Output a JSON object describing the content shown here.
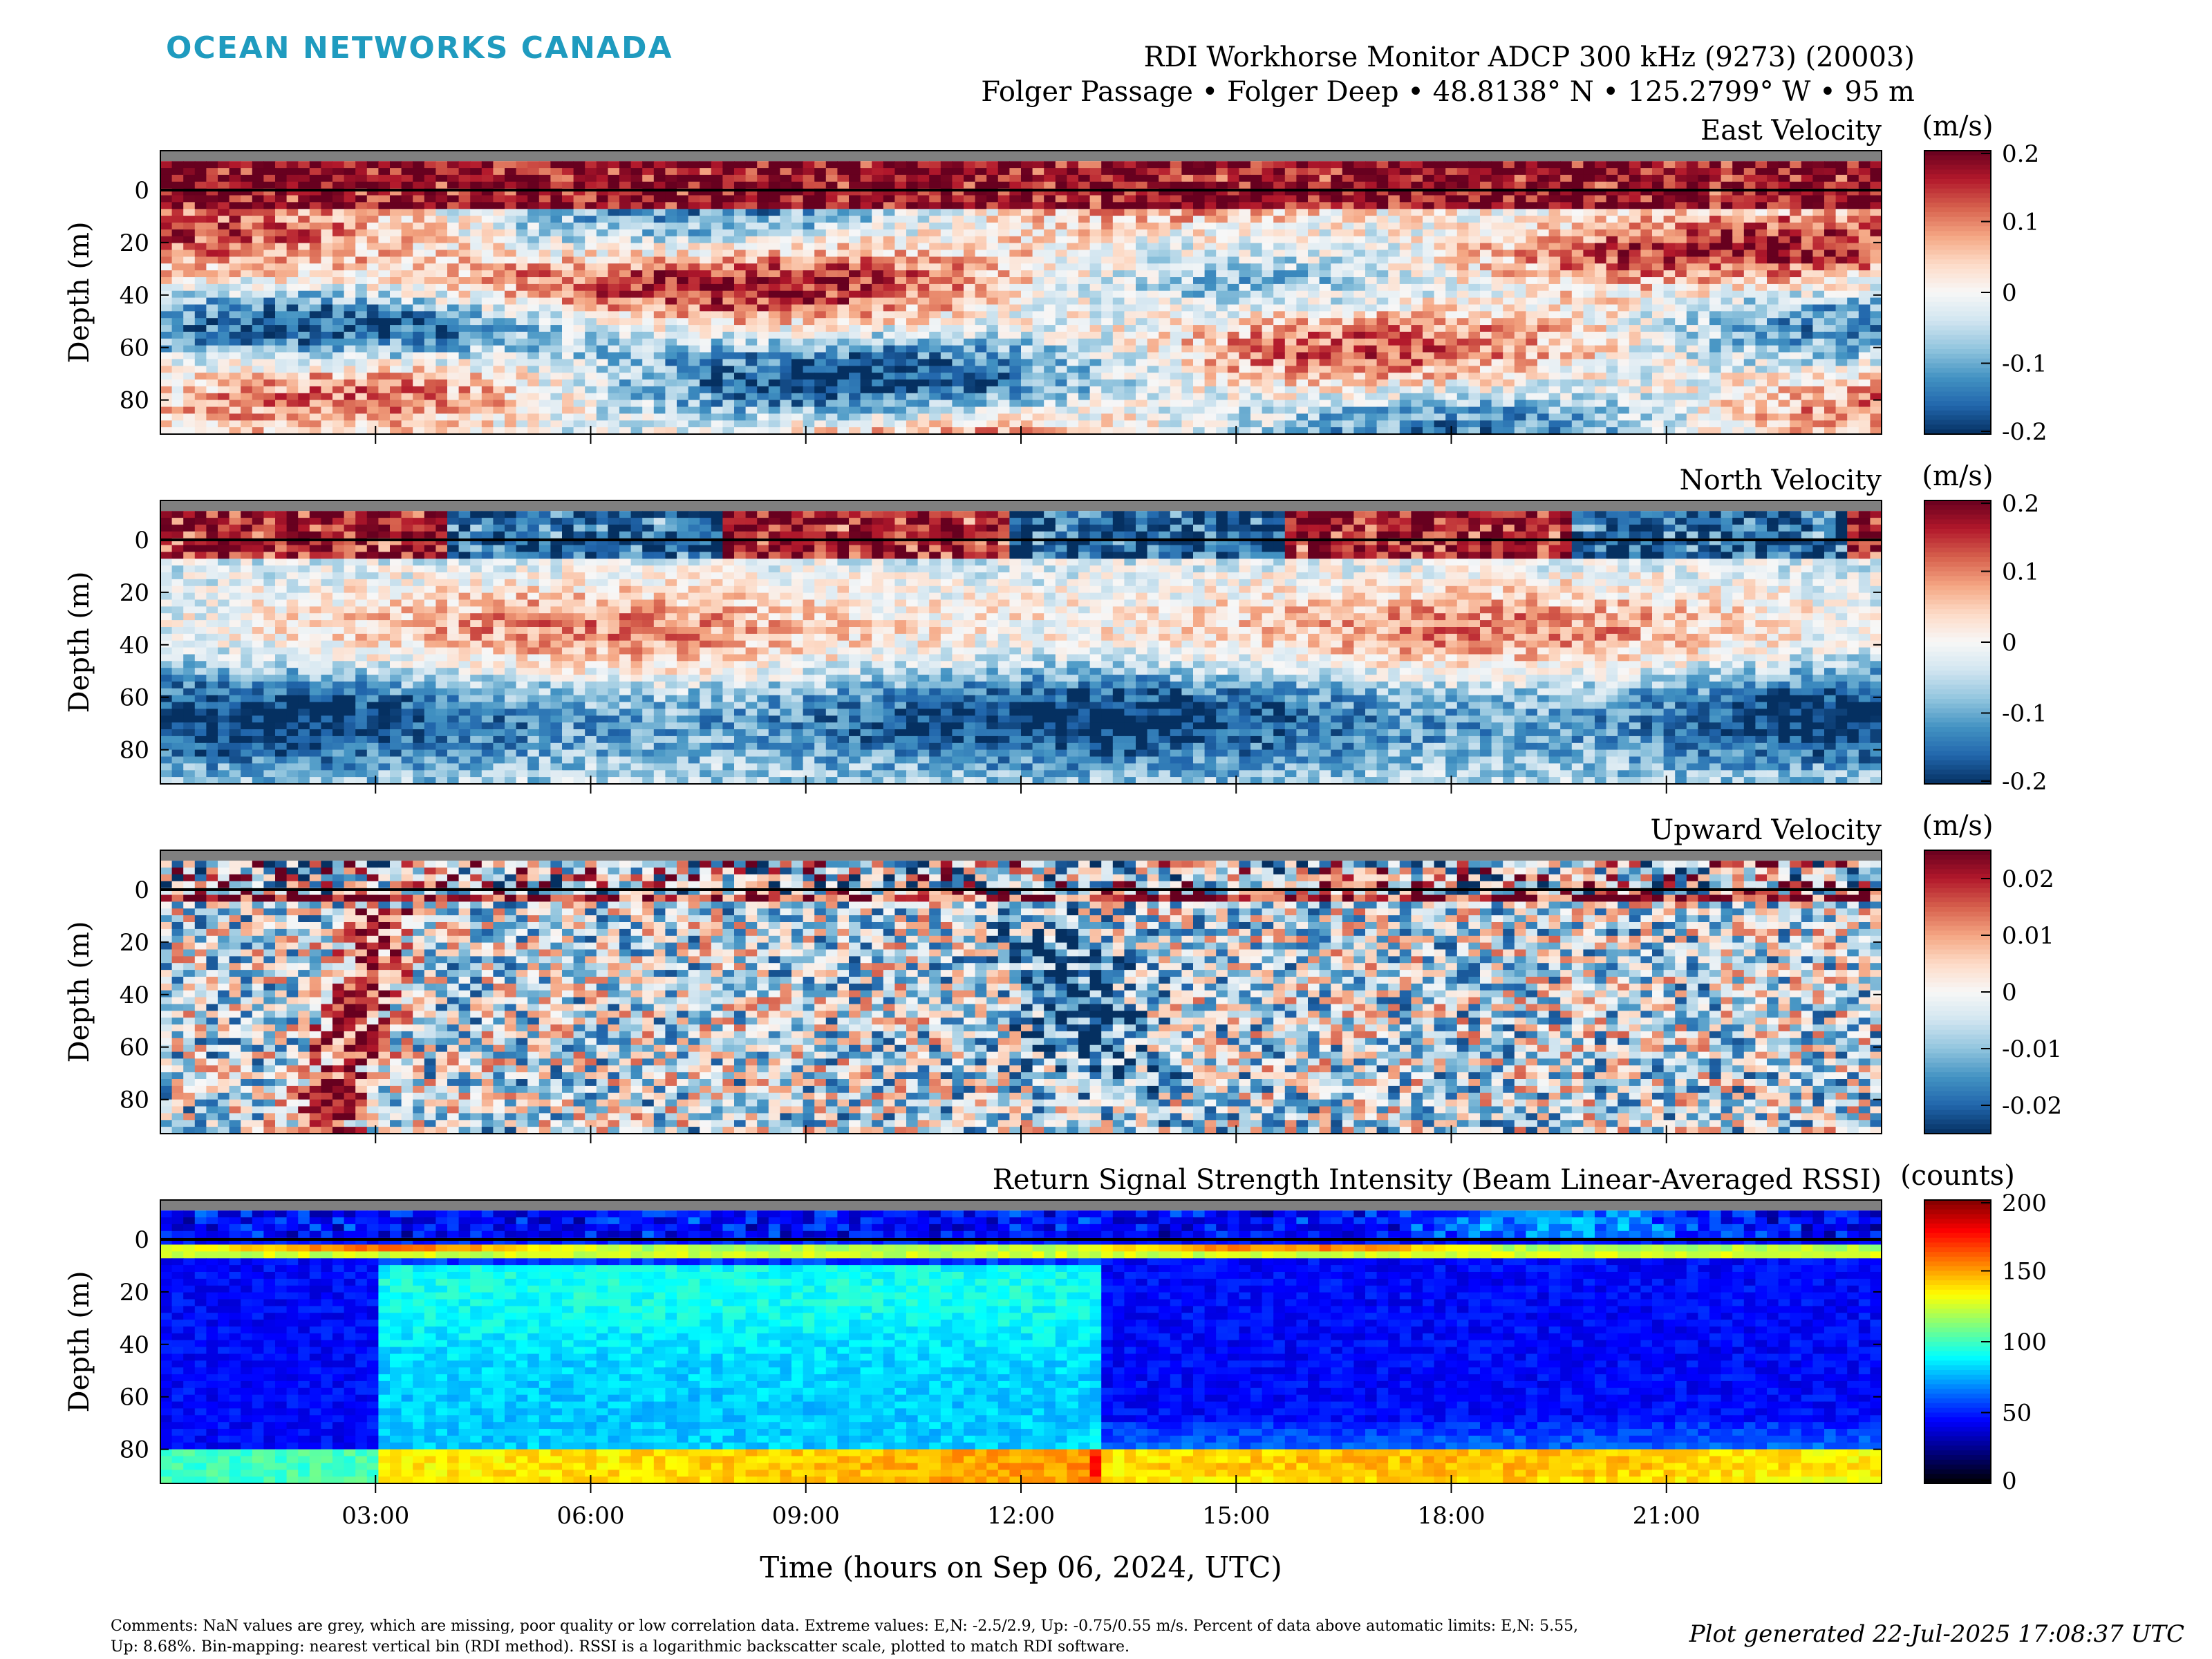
{
  "brand": "OCEAN NETWORKS CANADA",
  "header": {
    "title_line1": "RDI Workhorse Monitor ADCP 300 kHz (9273) (20003)",
    "title_line2": "Folger Passage • Folger Deep • 48.8138° N • 125.2799° W • 95 m"
  },
  "xlabel": "Time (hours on Sep 06, 2024, UTC)",
  "footer": {
    "comments": "Comments: NaN values are grey, which are missing, poor quality or low correlation data. Extreme values: E,N: -2.5/2.9, Up: -0.75/0.55 m/s. Percent of data above automatic limits: E,N: 5.55, Up: 8.68%. Bin-mapping: nearest vertical bin (RDI method). RSSI is a logarithmic backscatter scale, plotted to match RDI software.",
    "generated": "Plot generated 22-Jul-2025 17:08:37 UTC"
  },
  "colors": {
    "nan_grey": "#808080",
    "brand": "#1f9bbf",
    "diverging": [
      "#053061",
      "#2166ac",
      "#4393c3",
      "#92c5de",
      "#d1e5f0",
      "#f7f7f7",
      "#fddbc7",
      "#f4a582",
      "#d6604d",
      "#b2182b",
      "#67001f"
    ],
    "jet": [
      "#000000",
      "#00007f",
      "#0000ff",
      "#007fff",
      "#00ffff",
      "#7fff7f",
      "#ffff00",
      "#ff7f00",
      "#ff0000",
      "#7f0000"
    ]
  },
  "chart_data": [
    {
      "type": "heatmap",
      "title": "East Velocity",
      "ylabel": "Depth (m)",
      "units": "(m/s)",
      "x_unit": "hours UTC",
      "xlim": [
        0,
        24
      ],
      "ylim": [
        -15,
        93
      ],
      "y_reversed": true,
      "x_ticks": [
        3,
        6,
        9,
        12,
        15,
        18,
        21
      ],
      "x_tick_labels": [
        "03:00",
        "06:00",
        "09:00",
        "12:00",
        "15:00",
        "18:00",
        "21:00"
      ],
      "y_ticks": [
        0,
        20,
        40,
        60,
        80
      ],
      "colorbar_ticks": [
        0.2,
        0.1,
        0,
        -0.1,
        -0.2
      ],
      "colorbar_tick_labels": [
        "0.2",
        "0.1",
        "0",
        "-0.1",
        "-0.2"
      ],
      "colorbar_range": [
        -0.2,
        0.2
      ],
      "colormap": "diverging",
      "surface_line_depth": 0,
      "show_time_labels": false,
      "field_pattern": "east"
    },
    {
      "type": "heatmap",
      "title": "North Velocity",
      "ylabel": "Depth (m)",
      "units": "(m/s)",
      "x_unit": "hours UTC",
      "xlim": [
        0,
        24
      ],
      "ylim": [
        -15,
        93
      ],
      "y_reversed": true,
      "x_ticks": [
        3,
        6,
        9,
        12,
        15,
        18,
        21
      ],
      "x_tick_labels": [
        "03:00",
        "06:00",
        "09:00",
        "12:00",
        "15:00",
        "18:00",
        "21:00"
      ],
      "y_ticks": [
        0,
        20,
        40,
        60,
        80
      ],
      "colorbar_ticks": [
        0.2,
        0.1,
        0,
        -0.1,
        -0.2
      ],
      "colorbar_tick_labels": [
        "0.2",
        "0.1",
        "0",
        "-0.1",
        "-0.2"
      ],
      "colorbar_range": [
        -0.2,
        0.2
      ],
      "colormap": "diverging",
      "surface_line_depth": 0,
      "show_time_labels": false,
      "field_pattern": "north"
    },
    {
      "type": "heatmap",
      "title": "Upward Velocity",
      "ylabel": "Depth (m)",
      "units": "(m/s)",
      "x_unit": "hours UTC",
      "xlim": [
        0,
        24
      ],
      "ylim": [
        -15,
        93
      ],
      "y_reversed": true,
      "x_ticks": [
        3,
        6,
        9,
        12,
        15,
        18,
        21
      ],
      "x_tick_labels": [
        "03:00",
        "06:00",
        "09:00",
        "12:00",
        "15:00",
        "18:00",
        "21:00"
      ],
      "y_ticks": [
        0,
        20,
        40,
        60,
        80
      ],
      "colorbar_ticks": [
        0.02,
        0.01,
        0,
        -0.01,
        -0.02
      ],
      "colorbar_tick_labels": [
        "0.02",
        "0.01",
        "0",
        "-0.01",
        "-0.02"
      ],
      "colorbar_range": [
        -0.025,
        0.025
      ],
      "colormap": "diverging",
      "surface_line_depth": 0,
      "show_time_labels": false,
      "field_pattern": "up"
    },
    {
      "type": "heatmap",
      "title": "Return Signal Strength Intensity (Beam Linear-Averaged RSSI)",
      "ylabel": "Depth (m)",
      "units": "(counts)",
      "x_unit": "hours UTC",
      "xlim": [
        0,
        24
      ],
      "ylim": [
        -15,
        93
      ],
      "y_reversed": true,
      "x_ticks": [
        3,
        6,
        9,
        12,
        15,
        18,
        21
      ],
      "x_tick_labels": [
        "03:00",
        "06:00",
        "09:00",
        "12:00",
        "15:00",
        "18:00",
        "21:00"
      ],
      "y_ticks": [
        0,
        20,
        40,
        60,
        80
      ],
      "colorbar_ticks": [
        200,
        150,
        100,
        50,
        0
      ],
      "colorbar_tick_labels": [
        "200",
        "150",
        "100",
        "50",
        "0"
      ],
      "colorbar_range": [
        0,
        200
      ],
      "colormap": "jet",
      "surface_line_depth": 0,
      "show_time_labels": true,
      "field_pattern": "rssi"
    }
  ]
}
